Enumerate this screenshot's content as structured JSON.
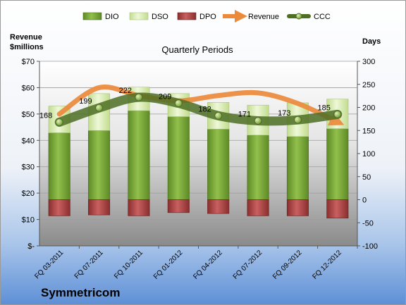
{
  "chart_data": {
    "type": "bar",
    "title": "Quarterly Periods",
    "company": "Symmetricom",
    "left_axis_label": [
      "Revenue",
      "$millions"
    ],
    "right_axis_label": "Days",
    "left_axis": {
      "ylim": [
        0,
        70
      ],
      "ticks": [
        0,
        10,
        20,
        30,
        40,
        50,
        60,
        70
      ],
      "tick_labels": [
        "$-",
        "$10",
        "$20",
        "$30",
        "$40",
        "$50",
        "$60",
        "$70"
      ]
    },
    "right_axis": {
      "ylim": [
        -100,
        300
      ],
      "ticks": [
        -100,
        -50,
        0,
        50,
        100,
        150,
        200,
        250,
        300
      ],
      "tick_labels": [
        "-100",
        "-50",
        "0",
        "50",
        "100",
        "150",
        "200",
        "250",
        "300"
      ]
    },
    "categories": [
      "FQ 03-2011",
      "FQ 07-2011",
      "FQ 10-2011",
      "FQ 01-2012",
      "FQ 04-2012",
      "FQ 07-2012",
      "FQ 09-2012",
      "FQ 12-2012"
    ],
    "legend": [
      "DIO",
      "DSO",
      "DPO",
      "Revenue",
      "CCC"
    ],
    "series": [
      {
        "name": "DIO",
        "axis": "right",
        "values": [
          145,
          150,
          193,
          180,
          153,
          140,
          137,
          154
        ]
      },
      {
        "name": "DSO",
        "axis": "right",
        "values": [
          58,
          80,
          51,
          50,
          58,
          65,
          73,
          64
        ]
      },
      {
        "name": "DPO",
        "axis": "right",
        "values": [
          -35,
          -33,
          -35,
          -28,
          -30,
          -35,
          -35,
          -40
        ]
      },
      {
        "name": "Revenue",
        "axis": "left",
        "values": [
          50,
          60,
          57,
          55,
          57,
          58,
          54,
          47
        ]
      },
      {
        "name": "CCC",
        "axis": "right",
        "values": [
          168,
          199,
          222,
          209,
          182,
          171,
          173,
          185
        ]
      }
    ],
    "ccc_labels": [
      "168",
      "199",
      "222",
      "209",
      "182",
      "171",
      "173",
      "185"
    ],
    "colors": {
      "DIO": "#7aa83a",
      "DSO": "#d8ecb0",
      "DPO": "#b04848",
      "Revenue": "#ec8a3c",
      "CCC": "#5a7a2c"
    }
  }
}
